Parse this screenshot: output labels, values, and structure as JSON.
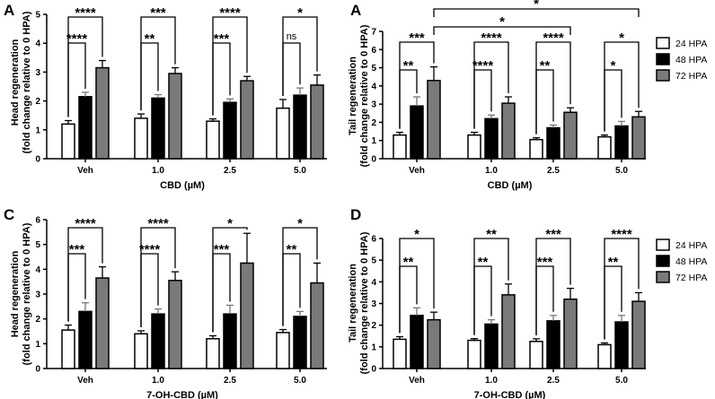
{
  "legend": {
    "entries": [
      {
        "name": "24 HPA",
        "color": "#ffffff"
      },
      {
        "name": "48 HPA",
        "color": "#000000"
      },
      {
        "name": "72 HPA",
        "color": "#7a7a7a"
      }
    ],
    "placement": "right"
  },
  "chart_data": [
    {
      "type": "bar",
      "panel_label": "A",
      "ylabel": [
        "Head regeneration",
        "(fold change relative to 0 HPA)"
      ],
      "xlabel": "CBD (µM)",
      "categories": [
        "Veh",
        "1.0",
        "2.5",
        "5.0"
      ],
      "ylim": [
        0,
        5
      ],
      "yticks": [
        "0",
        "1",
        "2",
        "3",
        "4",
        "5"
      ],
      "series": [
        {
          "name": "24 HPA",
          "values": [
            1.2,
            1.4,
            1.3,
            1.75
          ],
          "errors": [
            0.12,
            0.15,
            0.08,
            0.3
          ]
        },
        {
          "name": "48 HPA",
          "values": [
            2.15,
            2.1,
            1.95,
            2.2
          ],
          "errors": [
            0.15,
            0.12,
            0.12,
            0.25
          ]
        },
        {
          "name": "72 HPA",
          "values": [
            3.15,
            2.95,
            2.7,
            2.55
          ],
          "errors": [
            0.25,
            0.2,
            0.15,
            0.35
          ]
        }
      ],
      "annotations": [
        {
          "text": "****",
          "from": 0,
          "to": 1
        },
        {
          "text": "****",
          "from": 0,
          "to": 2
        },
        {
          "text": "**",
          "from": 0,
          "to": 1
        },
        {
          "text": "***",
          "from": 0,
          "to": 2
        },
        {
          "text": "***",
          "from": 0,
          "to": 1
        },
        {
          "text": "****",
          "from": 0,
          "to": 2
        },
        {
          "text": "ns",
          "from": 0,
          "to": 1
        },
        {
          "text": "*",
          "from": 0,
          "to": 2
        }
      ]
    },
    {
      "type": "bar",
      "panel_label": "A",
      "ylabel": [
        "Tail regeneration",
        "(fold change relative to 0 HPA)"
      ],
      "xlabel": "CBD (µM)",
      "categories": [
        "Veh",
        "1.0",
        "2.5",
        "5.0"
      ],
      "ylim": [
        0,
        7
      ],
      "yticks": [
        "0",
        "1",
        "2",
        "3",
        "4",
        "5",
        "6",
        "7"
      ],
      "series": [
        {
          "name": "24 HPA",
          "values": [
            1.3,
            1.3,
            1.05,
            1.2
          ],
          "errors": [
            0.15,
            0.15,
            0.1,
            0.1
          ]
        },
        {
          "name": "48 HPA",
          "values": [
            2.9,
            2.2,
            1.7,
            1.8
          ],
          "errors": [
            0.5,
            0.2,
            0.15,
            0.25
          ]
        },
        {
          "name": "72 HPA",
          "values": [
            4.3,
            3.05,
            2.55,
            2.3
          ],
          "errors": [
            0.75,
            0.35,
            0.25,
            0.3
          ]
        }
      ],
      "annotations": [
        {
          "text": "**",
          "from": 0,
          "to": 1
        },
        {
          "text": "***",
          "from": 0,
          "to": 2
        },
        {
          "text": "****",
          "from": 0,
          "to": 1
        },
        {
          "text": "****",
          "from": 0,
          "to": 2
        },
        {
          "text": "**",
          "from": 0,
          "to": 1
        },
        {
          "text": "****",
          "from": 0,
          "to": 2
        },
        {
          "text": "*",
          "from": 0,
          "to": 1
        },
        {
          "text": "*",
          "from": 0,
          "to": 2
        },
        {
          "text": "*",
          "between": "Veh 72 HPA to 2.5 72 HPA"
        },
        {
          "text": "*",
          "between": "Veh 72 HPA to 5.0 72 HPA"
        }
      ]
    },
    {
      "type": "bar",
      "panel_label": "C",
      "ylabel": [
        "Head regeneration",
        "(fold change relative to 0 HPA)"
      ],
      "xlabel": "7-OH-CBD (µM)",
      "categories": [
        "Veh",
        "1.0",
        "2.5",
        "5.0"
      ],
      "ylim": [
        0,
        6
      ],
      "yticks": [
        "0",
        "1",
        "2",
        "3",
        "4",
        "5",
        "6"
      ],
      "series": [
        {
          "name": "24 HPA",
          "values": [
            1.55,
            1.4,
            1.2,
            1.45
          ],
          "errors": [
            0.2,
            0.12,
            0.12,
            0.12
          ]
        },
        {
          "name": "48 HPA",
          "values": [
            2.3,
            2.2,
            2.2,
            2.1
          ],
          "errors": [
            0.35,
            0.2,
            0.35,
            0.2
          ]
        },
        {
          "name": "72 HPA",
          "values": [
            3.65,
            3.55,
            4.25,
            3.45
          ],
          "errors": [
            0.45,
            0.35,
            1.2,
            0.8
          ]
        }
      ],
      "annotations": [
        {
          "text": "***",
          "from": 0,
          "to": 1
        },
        {
          "text": "****",
          "from": 0,
          "to": 2
        },
        {
          "text": "****",
          "from": 0,
          "to": 1
        },
        {
          "text": "****",
          "from": 0,
          "to": 2
        },
        {
          "text": "***",
          "from": 0,
          "to": 1
        },
        {
          "text": "*",
          "from": 0,
          "to": 2
        },
        {
          "text": "**",
          "from": 0,
          "to": 1
        },
        {
          "text": "*",
          "from": 0,
          "to": 2
        }
      ]
    },
    {
      "type": "bar",
      "panel_label": "D",
      "ylabel": [
        "Tail regeneration",
        "(fold change relative to 0 HPA)"
      ],
      "xlabel": "7-OH-CBD (µM)",
      "categories": [
        "Veh",
        "1.0",
        "2.5",
        "5.0"
      ],
      "ylim": [
        0,
        6
      ],
      "yticks": [
        "0",
        "1",
        "2",
        "3",
        "4",
        "5",
        "6"
      ],
      "series": [
        {
          "name": "24 HPA",
          "values": [
            1.35,
            1.3,
            1.25,
            1.1
          ],
          "errors": [
            0.12,
            0.08,
            0.12,
            0.08
          ]
        },
        {
          "name": "48 HPA",
          "values": [
            2.45,
            2.05,
            2.2,
            2.15
          ],
          "errors": [
            0.35,
            0.2,
            0.25,
            0.3
          ]
        },
        {
          "name": "72 HPA",
          "values": [
            2.25,
            3.4,
            3.2,
            3.1
          ],
          "errors": [
            0.35,
            0.5,
            0.5,
            0.4
          ]
        }
      ],
      "annotations": [
        {
          "text": "**",
          "from": 0,
          "to": 1
        },
        {
          "text": "*",
          "from": 0,
          "to": 2
        },
        {
          "text": "**",
          "from": 0,
          "to": 1
        },
        {
          "text": "**",
          "from": 0,
          "to": 2
        },
        {
          "text": "***",
          "from": 0,
          "to": 1
        },
        {
          "text": "***",
          "from": 0,
          "to": 2
        },
        {
          "text": "**",
          "from": 0,
          "to": 1
        },
        {
          "text": "****",
          "from": 0,
          "to": 2
        }
      ]
    }
  ]
}
